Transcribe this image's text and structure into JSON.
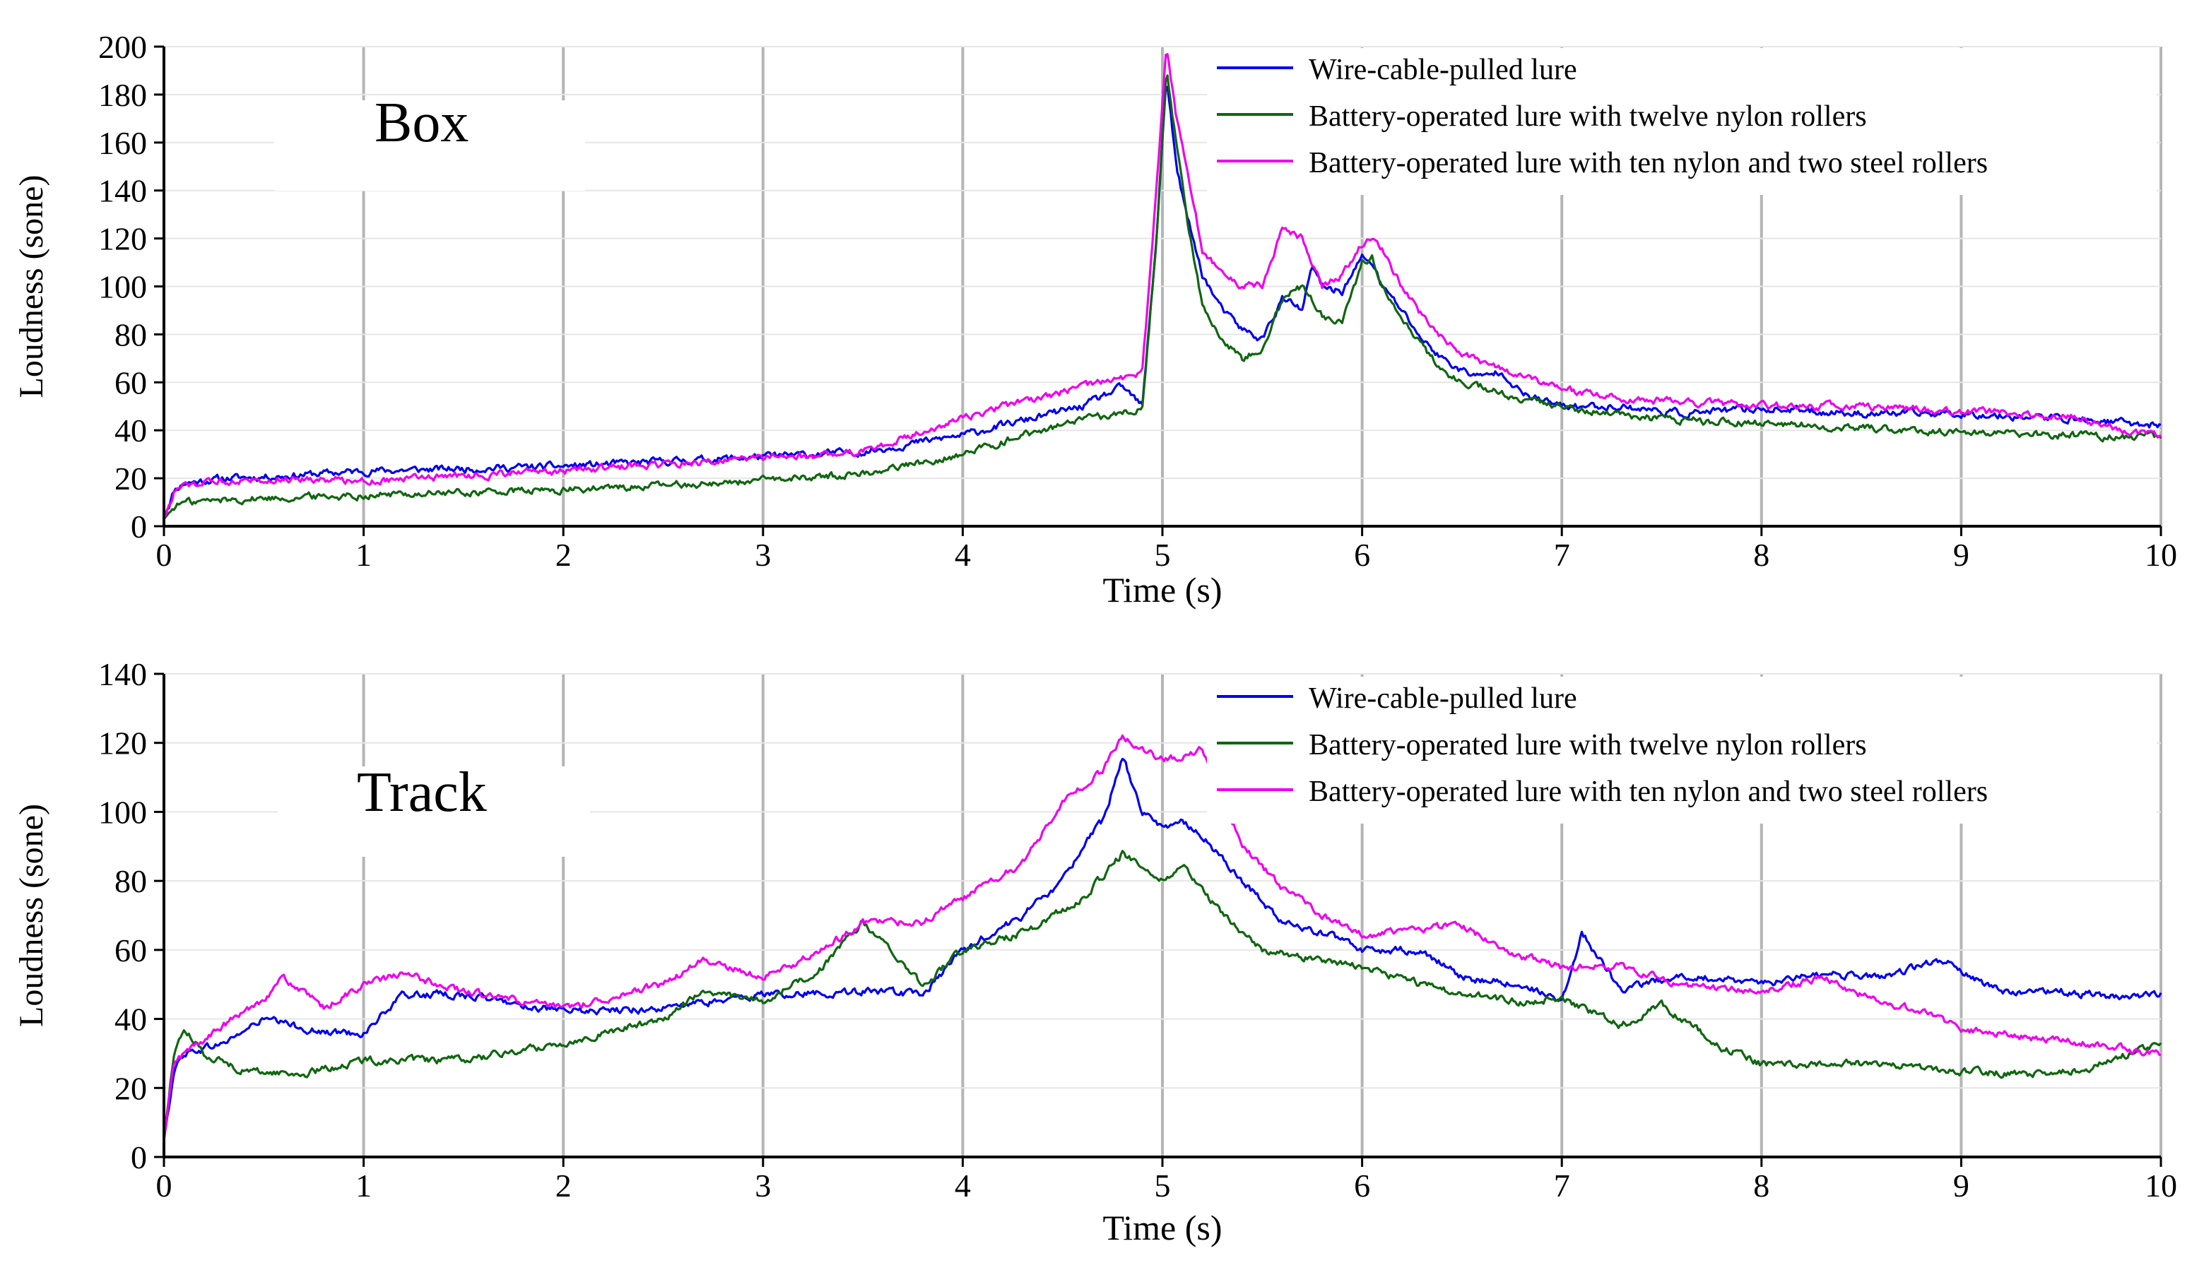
{
  "chart_data": [
    {
      "type": "line",
      "panel_label": "Box",
      "xlabel": "Time (s)",
      "ylabel": "Loudness (sone)",
      "xlim": [
        0,
        10
      ],
      "ylim": [
        0,
        200
      ],
      "xticks": [
        "0",
        "1",
        "2",
        "3",
        "4",
        "5",
        "6",
        "7",
        "8",
        "9",
        "10"
      ],
      "yticks": [
        "0",
        "20",
        "40",
        "60",
        "80",
        "100",
        "120",
        "140",
        "160",
        "180",
        "200"
      ],
      "grid": "vertical",
      "legend_position": "top-right",
      "series": [
        {
          "name": "Wire-cable-pulled lure",
          "color": "#0000ee",
          "x": [
            0,
            0.05,
            0.1,
            0.3,
            0.6,
            1.0,
            1.5,
            2.0,
            2.5,
            3.0,
            3.5,
            4.0,
            4.3,
            4.6,
            4.8,
            4.9,
            4.97,
            5.02,
            5.07,
            5.12,
            5.2,
            5.3,
            5.4,
            5.5,
            5.6,
            5.7,
            5.75,
            5.8,
            5.9,
            6.0,
            6.05,
            6.1,
            6.2,
            6.3,
            6.4,
            6.5,
            6.6,
            6.7,
            6.8,
            7.0,
            7.3,
            7.6,
            8.0,
            8.5,
            9.0,
            9.5,
            10.0
          ],
          "values": [
            3,
            15,
            18,
            20,
            21,
            23,
            24,
            25,
            27,
            29,
            31,
            38,
            44,
            50,
            58,
            50,
            120,
            188,
            150,
            130,
            105,
            90,
            82,
            78,
            95,
            90,
            108,
            100,
            98,
            112,
            110,
            100,
            90,
            78,
            70,
            65,
            62,
            65,
            55,
            50,
            50,
            47,
            49,
            47,
            47,
            45,
            42
          ]
        },
        {
          "name": "Battery-operated lure with twelve nylon rollers",
          "color": "#116611",
          "x": [
            0,
            0.05,
            0.1,
            0.3,
            0.6,
            1.0,
            1.5,
            2.0,
            2.5,
            3.0,
            3.5,
            4.0,
            4.3,
            4.6,
            4.8,
            4.9,
            4.97,
            5.02,
            5.07,
            5.12,
            5.2,
            5.3,
            5.4,
            5.5,
            5.6,
            5.7,
            5.8,
            5.9,
            6.0,
            6.05,
            6.1,
            6.2,
            6.3,
            6.4,
            6.5,
            6.6,
            6.7,
            6.8,
            7.0,
            7.3,
            7.6,
            8.0,
            8.5,
            9.0,
            9.5,
            10.0
          ],
          "values": [
            3,
            8,
            10,
            11,
            12,
            13,
            14,
            15,
            17,
            19,
            22,
            30,
            38,
            44,
            47,
            50,
            120,
            190,
            160,
            130,
            92,
            78,
            70,
            75,
            95,
            100,
            88,
            85,
            110,
            112,
            100,
            88,
            75,
            65,
            60,
            58,
            55,
            52,
            50,
            46,
            44,
            43,
            41,
            39,
            38,
            37
          ]
        },
        {
          "name": "Battery-operated lure with ten nylon and two steel rollers",
          "color": "#ee00ee",
          "x": [
            0,
            0.05,
            0.1,
            0.3,
            0.6,
            1.0,
            1.5,
            2.0,
            2.5,
            3.0,
            3.5,
            4.0,
            4.3,
            4.6,
            4.8,
            4.9,
            4.97,
            5.02,
            5.07,
            5.12,
            5.2,
            5.3,
            5.4,
            5.5,
            5.6,
            5.7,
            5.8,
            5.9,
            6.0,
            6.05,
            6.1,
            6.2,
            6.3,
            6.4,
            6.5,
            6.6,
            6.7,
            6.8,
            7.0,
            7.3,
            7.6,
            8.0,
            8.5,
            9.0,
            9.5,
            10.0
          ],
          "values": [
            3,
            14,
            17,
            19,
            20,
            19,
            21,
            23,
            26,
            28,
            31,
            45,
            52,
            58,
            62,
            65,
            140,
            200,
            170,
            150,
            115,
            105,
            100,
            100,
            125,
            120,
            100,
            105,
            118,
            120,
            115,
            100,
            88,
            78,
            72,
            68,
            66,
            62,
            57,
            53,
            52,
            50,
            50,
            48,
            46,
            37
          ]
        }
      ]
    },
    {
      "type": "line",
      "panel_label": "Track",
      "xlabel": "Time (s)",
      "ylabel": "Loudness (sone)",
      "xlim": [
        0,
        10
      ],
      "ylim": [
        0,
        140
      ],
      "xticks": [
        "0",
        "1",
        "2",
        "3",
        "4",
        "5",
        "6",
        "7",
        "8",
        "9",
        "10"
      ],
      "yticks": [
        "0",
        "20",
        "40",
        "60",
        "80",
        "100",
        "120",
        "140"
      ],
      "grid": "vertical",
      "legend_position": "top-right",
      "series": [
        {
          "name": "Wire-cable-pulled lure",
          "color": "#0000ee",
          "x": [
            0,
            0.05,
            0.1,
            0.3,
            0.5,
            0.8,
            1.0,
            1.2,
            1.5,
            2.0,
            2.5,
            3.0,
            3.5,
            3.8,
            4.0,
            4.3,
            4.5,
            4.6,
            4.7,
            4.8,
            4.9,
            5.0,
            5.1,
            5.2,
            5.4,
            5.6,
            5.8,
            6.0,
            6.3,
            6.5,
            6.8,
            7.0,
            7.1,
            7.3,
            7.6,
            8.0,
            8.3,
            8.6,
            8.9,
            9.2,
            9.5,
            9.8,
            10.0
          ],
          "values": [
            5,
            25,
            30,
            33,
            40,
            36,
            36,
            47,
            47,
            42,
            43,
            47,
            48,
            47,
            60,
            70,
            80,
            90,
            97,
            116,
            100,
            95,
            98,
            93,
            80,
            68,
            65,
            60,
            60,
            52,
            50,
            45,
            65,
            48,
            53,
            50,
            53,
            52,
            57,
            48,
            48,
            46,
            47
          ]
        },
        {
          "name": "Battery-operated lure with twelve nylon rollers",
          "color": "#116611",
          "x": [
            0,
            0.05,
            0.1,
            0.2,
            0.4,
            0.7,
            1.0,
            1.5,
            2.0,
            2.5,
            2.7,
            3.0,
            3.3,
            3.5,
            3.8,
            4.0,
            4.3,
            4.6,
            4.8,
            5.0,
            5.1,
            5.3,
            5.5,
            5.8,
            6.0,
            6.3,
            6.5,
            6.8,
            7.0,
            7.3,
            7.5,
            7.8,
            8.0,
            8.3,
            8.6,
            9.0,
            9.3,
            9.6,
            10.0
          ],
          "values": [
            5,
            30,
            37,
            30,
            25,
            24,
            28,
            28,
            33,
            40,
            48,
            45,
            55,
            68,
            50,
            60,
            65,
            75,
            88,
            80,
            85,
            70,
            60,
            57,
            55,
            50,
            47,
            45,
            46,
            38,
            44,
            32,
            27,
            27,
            27,
            25,
            24,
            25,
            33
          ]
        },
        {
          "name": "Battery-operated lure with ten nylon and two steel rollers",
          "color": "#ee00ee",
          "x": [
            0,
            0.05,
            0.1,
            0.3,
            0.5,
            0.6,
            0.8,
            1.0,
            1.2,
            1.5,
            2.0,
            2.5,
            2.7,
            3.0,
            3.3,
            3.5,
            3.8,
            4.0,
            4.3,
            4.5,
            4.7,
            4.8,
            5.0,
            5.2,
            5.4,
            5.6,
            5.8,
            6.0,
            6.2,
            6.5,
            6.8,
            7.0,
            7.3,
            7.6,
            8.0,
            8.3,
            8.5,
            8.8,
            9.0,
            9.3,
            9.6,
            10.0
          ],
          "values": [
            5,
            27,
            30,
            38,
            46,
            52,
            43,
            50,
            53,
            48,
            43,
            50,
            57,
            52,
            60,
            68,
            68,
            75,
            85,
            103,
            112,
            122,
            115,
            118,
            90,
            78,
            70,
            64,
            66,
            67,
            58,
            55,
            55,
            50,
            48,
            52,
            47,
            42,
            37,
            35,
            33,
            30
          ]
        }
      ]
    }
  ]
}
